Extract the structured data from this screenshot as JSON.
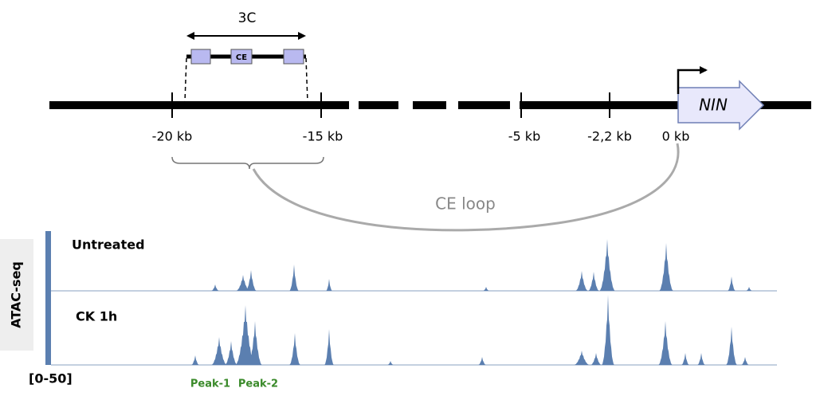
{
  "construct": {
    "label": "3C",
    "element": "CE",
    "gene": "NIN"
  },
  "positions": [
    "-20 kb",
    "-15 kb",
    "-5 kb",
    "-2,2 kb",
    "0 kb"
  ],
  "loop": "CE loop",
  "tracks": {
    "assay": "ATAC-seq",
    "range": "[0-50]",
    "samples": [
      "Untreated",
      "CK 1h"
    ],
    "peaks": [
      "Peak-1",
      "Peak-2"
    ]
  }
}
